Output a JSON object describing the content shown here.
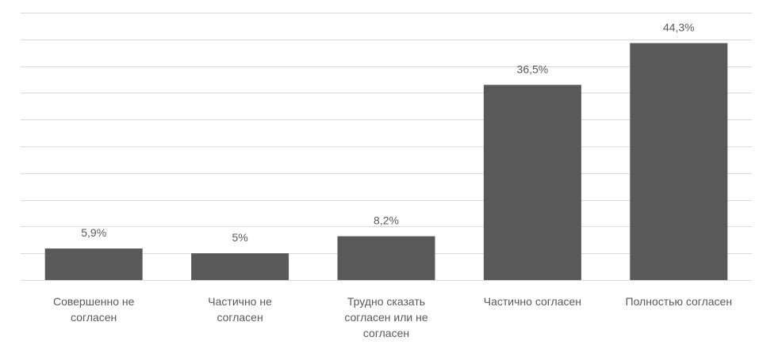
{
  "chart_data": {
    "type": "bar",
    "categories": [
      [
        "Совершенно не",
        "согласен"
      ],
      [
        "Частично не",
        "согласен"
      ],
      [
        "Трудно сказать",
        "согласен или не",
        "согласен"
      ],
      [
        "Частично согласен"
      ],
      [
        "Полностью согласен"
      ]
    ],
    "values": [
      5.9,
      5,
      8.2,
      36.5,
      44.3
    ],
    "data_labels": [
      "5,9%",
      "5%",
      "8,2%",
      "36,5%",
      "44,3%"
    ],
    "title": "",
    "xlabel": "",
    "ylabel": "",
    "ylim": [
      0,
      50
    ],
    "y_gridline_step": 5,
    "y_tick_labels_shown": false,
    "grid": true,
    "legend": "none",
    "colors": {
      "bar": "#595959",
      "gridline": "#d9d9d9",
      "label_text": "#595959"
    }
  }
}
